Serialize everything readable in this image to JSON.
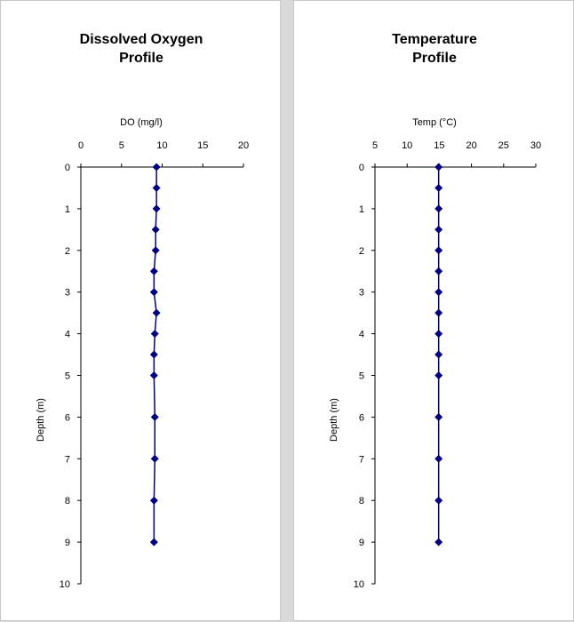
{
  "colors": {
    "series": "#000080",
    "axis": "#000000",
    "background": "#ffffff",
    "frame": "#d9d9d9"
  },
  "chart_data": [
    {
      "type": "line",
      "title_lines": [
        "Dissolved Oxygen",
        "Profile"
      ],
      "xlabel": "DO (mg/l)",
      "ylabel": "Depth (m)",
      "xlim": [
        0,
        20
      ],
      "xticks": [
        0,
        5,
        10,
        15,
        20
      ],
      "ylim": [
        0,
        10
      ],
      "yticks": [
        0,
        1,
        2,
        3,
        4,
        5,
        6,
        7,
        8,
        9,
        10
      ],
      "y_inverted": true,
      "x_axis_position": "top",
      "grid": false,
      "marker": "diamond",
      "series": [
        {
          "points": [
            {
              "x": 9.3,
              "y": 0
            },
            {
              "x": 9.3,
              "y": 0.5
            },
            {
              "x": 9.3,
              "y": 1
            },
            {
              "x": 9.2,
              "y": 1.5
            },
            {
              "x": 9.2,
              "y": 2
            },
            {
              "x": 9.0,
              "y": 2.5
            },
            {
              "x": 9.0,
              "y": 3
            },
            {
              "x": 9.3,
              "y": 3.5
            },
            {
              "x": 9.1,
              "y": 4
            },
            {
              "x": 9.0,
              "y": 4.5
            },
            {
              "x": 9.0,
              "y": 5
            },
            {
              "x": 9.1,
              "y": 6
            },
            {
              "x": 9.1,
              "y": 7
            },
            {
              "x": 9.0,
              "y": 8
            },
            {
              "x": 9.0,
              "y": 9
            }
          ]
        }
      ]
    },
    {
      "type": "line",
      "title_lines": [
        "Temperature",
        "Profile"
      ],
      "xlabel": "Temp (°C)",
      "ylabel": "Depth (m)",
      "xlim": [
        5,
        30
      ],
      "xticks": [
        5,
        10,
        15,
        20,
        25,
        30
      ],
      "ylim": [
        0,
        10
      ],
      "yticks": [
        0,
        1,
        2,
        3,
        4,
        5,
        6,
        7,
        8,
        9,
        10
      ],
      "y_inverted": true,
      "x_axis_position": "top",
      "grid": false,
      "marker": "diamond",
      "series": [
        {
          "points": [
            {
              "x": 14.9,
              "y": 0
            },
            {
              "x": 14.9,
              "y": 0.5
            },
            {
              "x": 14.9,
              "y": 1
            },
            {
              "x": 14.9,
              "y": 1.5
            },
            {
              "x": 14.9,
              "y": 2
            },
            {
              "x": 14.9,
              "y": 2.5
            },
            {
              "x": 14.9,
              "y": 3
            },
            {
              "x": 14.9,
              "y": 3.5
            },
            {
              "x": 14.9,
              "y": 4
            },
            {
              "x": 14.9,
              "y": 4.5
            },
            {
              "x": 14.9,
              "y": 5
            },
            {
              "x": 14.9,
              "y": 6
            },
            {
              "x": 14.9,
              "y": 7
            },
            {
              "x": 14.9,
              "y": 8
            },
            {
              "x": 14.9,
              "y": 9
            }
          ]
        }
      ]
    }
  ]
}
